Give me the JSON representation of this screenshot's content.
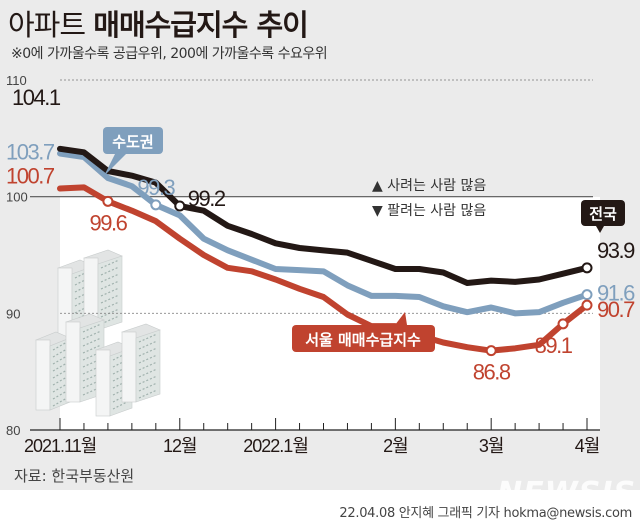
{
  "header": {
    "title_light": "아파트",
    "title_bold": "매매수급지수 추이",
    "subtitle": "※0에 가까울수록 공급우위, 200에 가까울수록 수요우위"
  },
  "legend": {
    "above": "▲ 사려는 사람 많음",
    "below": "▼ 팔려는 사람 많음"
  },
  "footer": {
    "source": "자료: 한국부동산원",
    "credit": "22.04.08 안지혜 그래픽 기자 hokma@newsis.com",
    "watermark": "NEWSIS"
  },
  "chart_data": {
    "type": "line",
    "title": "아파트 매매수급지수 추이",
    "xlabel": "",
    "ylabel": "",
    "ylim": [
      80,
      110
    ],
    "yticks": [
      "80",
      "90",
      "100",
      "110"
    ],
    "xtick_labels": [
      {
        "index": 0,
        "label": "2021.11월"
      },
      {
        "index": 5,
        "label": "12월"
      },
      {
        "index": 9,
        "label": "2022.1월"
      },
      {
        "index": 14,
        "label": "2월"
      },
      {
        "index": 18,
        "label": "3월"
      },
      {
        "index": 22,
        "label": "4월"
      }
    ],
    "x_count": 23,
    "series": [
      {
        "name": "전국",
        "color": "#231815",
        "values": [
          104.1,
          103.8,
          102.2,
          101.8,
          101.2,
          99.2,
          98.8,
          97.5,
          96.8,
          96.0,
          95.6,
          95.4,
          95.2,
          94.5,
          93.8,
          93.8,
          93.5,
          92.6,
          92.8,
          92.7,
          92.9,
          93.4,
          93.9
        ],
        "labels": [
          {
            "index": 0,
            "text": "104.1",
            "pos": "above-left"
          },
          {
            "index": 5,
            "text": "99.2",
            "pos": "right"
          },
          {
            "index": 22,
            "text": "93.9",
            "pos": "right"
          }
        ],
        "markers": [
          5,
          22
        ],
        "tag": "전국"
      },
      {
        "name": "수도권",
        "color": "#7f9fbd",
        "values": [
          103.7,
          103.4,
          101.6,
          100.9,
          99.3,
          98.4,
          96.4,
          95.4,
          94.6,
          93.8,
          93.7,
          93.6,
          92.4,
          91.5,
          91.5,
          91.4,
          90.6,
          90.1,
          90.5,
          90.0,
          90.1,
          90.9,
          91.6
        ],
        "labels": [
          {
            "index": 0,
            "text": "103.7",
            "pos": "left"
          },
          {
            "index": 4,
            "text": "99.3",
            "pos": "above"
          },
          {
            "index": 22,
            "text": "91.6",
            "pos": "right"
          }
        ],
        "markers": [
          4,
          22
        ],
        "tag": "수도권"
      },
      {
        "name": "서울 매매수급지수",
        "color": "#c0432f",
        "values": [
          100.7,
          100.8,
          99.6,
          98.8,
          97.9,
          96.4,
          95.0,
          93.9,
          93.6,
          92.9,
          92.1,
          91.4,
          89.9,
          88.9,
          88.9,
          88.1,
          87.5,
          87.1,
          86.8,
          87.0,
          87.3,
          89.1,
          90.7
        ],
        "labels": [
          {
            "index": 0,
            "text": "100.7",
            "pos": "left"
          },
          {
            "index": 2,
            "text": "99.6",
            "pos": "below"
          },
          {
            "index": 18,
            "text": "86.8",
            "pos": "below"
          },
          {
            "index": 21,
            "text": "89.1",
            "pos": "below"
          },
          {
            "index": 22,
            "text": "90.7",
            "pos": "right"
          }
        ],
        "markers": [
          2,
          18,
          21,
          22
        ],
        "tag": "서울 매매수급지수"
      }
    ]
  }
}
